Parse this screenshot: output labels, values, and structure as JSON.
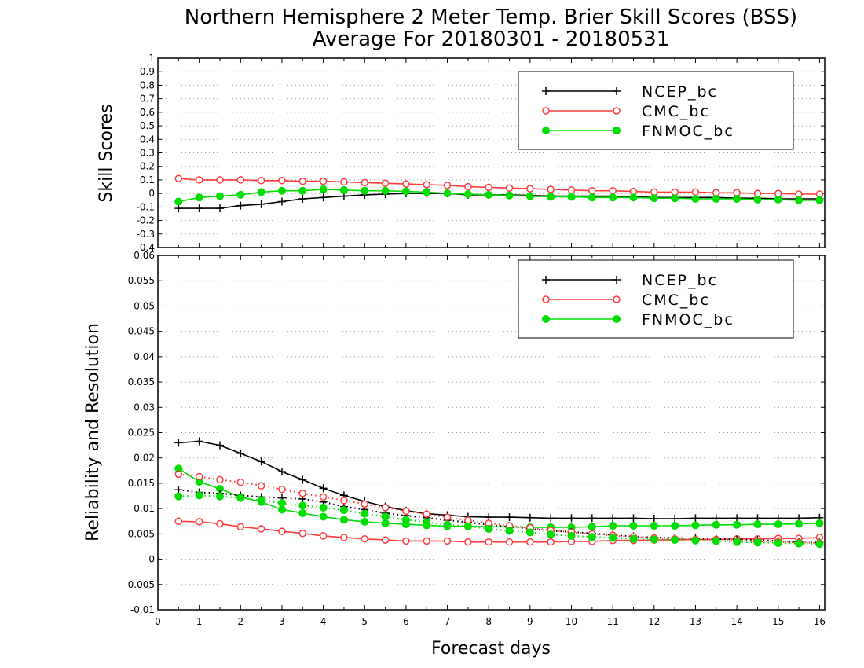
{
  "chart_data": [
    {
      "type": "line",
      "panel": "top",
      "title": "Northern Hemisphere 2 Meter Temp. Brier Skill Scores (BSS)",
      "subtitle": "Average For 20180301 - 20180531",
      "ylabel": "Skill Scores",
      "xlabel": "",
      "xlim": [
        0,
        16.125
      ],
      "ylim": [
        -0.4,
        1
      ],
      "yticks": [
        "-0.4",
        "-0.3",
        "-0.2",
        "-0.1",
        "0",
        "0.1",
        "0.2",
        "0.3",
        "0.4",
        "0.5",
        "0.6",
        "0.7",
        "0.8",
        "0.9",
        "1"
      ],
      "grid": true,
      "legend_position": "top-right",
      "x": [
        0.5,
        1,
        1.5,
        2,
        2.5,
        3,
        3.5,
        4,
        4.5,
        5,
        5.5,
        6,
        6.5,
        7,
        7.5,
        8,
        8.5,
        9,
        9.5,
        10,
        10.5,
        11,
        11.5,
        12,
        12.5,
        13,
        13.5,
        14,
        14.5,
        15,
        15.5,
        16
      ],
      "series": [
        {
          "name": "NCEP_bc",
          "color": "#000000",
          "marker": "plus",
          "style": "solid",
          "values": [
            -0.11,
            -0.11,
            -0.11,
            -0.09,
            -0.08,
            -0.06,
            -0.04,
            -0.03,
            -0.02,
            -0.01,
            -0.005,
            0,
            0,
            0,
            -0.01,
            -0.01,
            -0.01,
            -0.015,
            -0.02,
            -0.02,
            -0.02,
            -0.02,
            -0.025,
            -0.03,
            -0.03,
            -0.03,
            -0.03,
            -0.035,
            -0.035,
            -0.04,
            -0.04,
            -0.04
          ]
        },
        {
          "name": "CMC_bc",
          "color": "#ff3b3b",
          "marker": "open-circle",
          "style": "solid",
          "values": [
            0.11,
            0.1,
            0.1,
            0.1,
            0.095,
            0.095,
            0.09,
            0.09,
            0.085,
            0.08,
            0.075,
            0.07,
            0.065,
            0.06,
            0.05,
            0.045,
            0.04,
            0.035,
            0.03,
            0.025,
            0.02,
            0.02,
            0.015,
            0.01,
            0.01,
            0.01,
            0.005,
            0.005,
            0,
            0,
            -0.005,
            -0.005
          ]
        },
        {
          "name": "FNMOC_bc",
          "color": "#00dd00",
          "marker": "filled-circle",
          "style": "solid",
          "values": [
            -0.06,
            -0.03,
            -0.02,
            -0.01,
            0.01,
            0.02,
            0.02,
            0.03,
            0.025,
            0.02,
            0.02,
            0.015,
            0.01,
            0,
            -0.005,
            -0.01,
            -0.015,
            -0.02,
            -0.025,
            -0.025,
            -0.03,
            -0.03,
            -0.03,
            -0.035,
            -0.035,
            -0.04,
            -0.04,
            -0.04,
            -0.045,
            -0.045,
            -0.05,
            -0.05
          ]
        }
      ]
    },
    {
      "type": "line",
      "panel": "bottom",
      "ylabel": "Reliability and Resolution",
      "xlabel": "Forecast days",
      "xlim": [
        0,
        16.125
      ],
      "ylim": [
        -0.01,
        0.06
      ],
      "yticks": [
        "-0.01",
        "-0.005",
        "0",
        "0.005",
        "0.01",
        "0.015",
        "0.02",
        "0.025",
        "0.03",
        "0.035",
        "0.04",
        "0.045",
        "0.05",
        "0.055",
        "0.06"
      ],
      "xticks": [
        "0",
        "1",
        "2",
        "3",
        "4",
        "5",
        "6",
        "7",
        "8",
        "9",
        "10",
        "11",
        "12",
        "13",
        "14",
        "15",
        "16"
      ],
      "grid": true,
      "legend_position": "top-right",
      "x": [
        0.5,
        1,
        1.5,
        2,
        2.5,
        3,
        3.5,
        4,
        4.5,
        5,
        5.5,
        6,
        6.5,
        7,
        7.5,
        8,
        8.5,
        9,
        9.5,
        10,
        10.5,
        11,
        11.5,
        12,
        12.5,
        13,
        13.5,
        14,
        14.5,
        15,
        15.5,
        16
      ],
      "series": [
        {
          "name": "NCEP_bc",
          "color": "#000000",
          "marker": "plus",
          "style": "solid",
          "values": [
            0.023,
            0.0233,
            0.0225,
            0.0209,
            0.0193,
            0.0173,
            0.0157,
            0.014,
            0.0126,
            0.0114,
            0.0104,
            0.0096,
            0.009,
            0.0087,
            0.0084,
            0.0083,
            0.0083,
            0.0082,
            0.0081,
            0.0081,
            0.0081,
            0.0081,
            0.0081,
            0.008,
            0.008,
            0.0081,
            0.0081,
            0.0081,
            0.0081,
            0.0081,
            0.0081,
            0.0082
          ]
        },
        {
          "name": "CMC_bc",
          "color": "#ff3b3b",
          "marker": "open-circle",
          "style": "solid",
          "values": [
            0.0075,
            0.0074,
            0.007,
            0.0064,
            0.006,
            0.0055,
            0.0051,
            0.0046,
            0.0043,
            0.004,
            0.0038,
            0.0036,
            0.0036,
            0.0036,
            0.0034,
            0.0034,
            0.0034,
            0.0034,
            0.0034,
            0.0035,
            0.0035,
            0.0037,
            0.0037,
            0.0038,
            0.0038,
            0.0039,
            0.0039,
            0.004,
            0.004,
            0.0041,
            0.0041,
            0.0043
          ]
        },
        {
          "name": "FNMOC_bc",
          "color": "#00dd00",
          "marker": "filled-circle",
          "style": "solid",
          "values": [
            0.0179,
            0.0153,
            0.0139,
            0.0123,
            0.0113,
            0.0098,
            0.0091,
            0.0084,
            0.0078,
            0.0074,
            0.0071,
            0.0069,
            0.0067,
            0.0065,
            0.0065,
            0.0064,
            0.0064,
            0.0063,
            0.0063,
            0.0063,
            0.0064,
            0.0066,
            0.0066,
            0.0066,
            0.0066,
            0.0067,
            0.0068,
            0.0068,
            0.0069,
            0.0069,
            0.007,
            0.0071
          ]
        },
        {
          "name": "",
          "color": "#000000",
          "marker": "plus",
          "style": "dotted",
          "values": [
            0.0137,
            0.0132,
            0.013,
            0.0126,
            0.0123,
            0.0121,
            0.0119,
            0.0113,
            0.0104,
            0.0098,
            0.0091,
            0.0086,
            0.0082,
            0.0077,
            0.0073,
            0.0068,
            0.0064,
            0.006,
            0.0056,
            0.0054,
            0.0051,
            0.0048,
            0.0045,
            0.0043,
            0.0042,
            0.0041,
            0.004,
            0.0039,
            0.0038,
            0.0036,
            0.0034,
            0.0033
          ]
        },
        {
          "name": "",
          "color": "#ff3b3b",
          "marker": "open-circle",
          "style": "dotted",
          "values": [
            0.0168,
            0.0163,
            0.0157,
            0.0152,
            0.0145,
            0.0138,
            0.013,
            0.0123,
            0.0116,
            0.0109,
            0.0102,
            0.0095,
            0.0089,
            0.0083,
            0.0077,
            0.0071,
            0.0066,
            0.0062,
            0.0057,
            0.0053,
            0.005,
            0.0047,
            0.0044,
            0.0042,
            0.004,
            0.0039,
            0.0038,
            0.0036,
            0.0035,
            0.0034,
            0.0033,
            0.0032
          ]
        },
        {
          "name": "",
          "color": "#00dd00",
          "marker": "filled-circle",
          "style": "dotted",
          "values": [
            0.0124,
            0.0126,
            0.0124,
            0.0121,
            0.0116,
            0.0111,
            0.0106,
            0.0102,
            0.0097,
            0.009,
            0.0084,
            0.0078,
            0.0073,
            0.0068,
            0.0065,
            0.006,
            0.0056,
            0.0053,
            0.0049,
            0.0046,
            0.0044,
            0.0042,
            0.004,
            0.0039,
            0.0038,
            0.0037,
            0.0036,
            0.0034,
            0.0033,
            0.0032,
            0.0031,
            0.003
          ]
        }
      ]
    }
  ]
}
